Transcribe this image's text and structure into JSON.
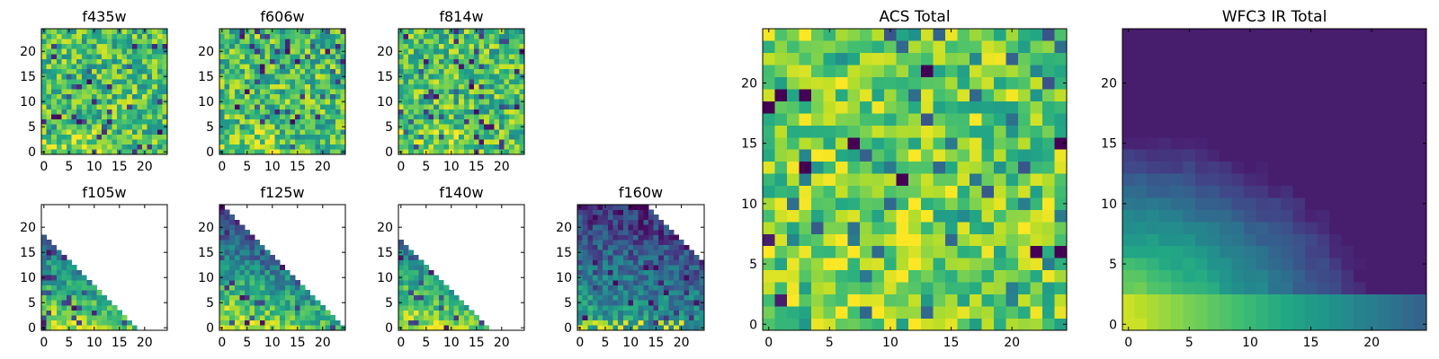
{
  "chart_data": [
    {
      "type": "heatmap",
      "title": "f435w",
      "grid_size": 25,
      "xlim": [
        -0.5,
        24.5
      ],
      "ylim": [
        -0.5,
        24.5
      ],
      "xticks": [
        0,
        5,
        10,
        15,
        20
      ],
      "yticks": [
        0,
        5,
        10,
        15,
        20
      ],
      "mask": "none",
      "pattern": "noise",
      "seed": 11,
      "colormap": "viridis"
    },
    {
      "type": "heatmap",
      "title": "f606w",
      "grid_size": 25,
      "xlim": [
        -0.5,
        24.5
      ],
      "ylim": [
        -0.5,
        24.5
      ],
      "xticks": [
        0,
        5,
        10,
        15,
        20
      ],
      "yticks": [
        0,
        5,
        10,
        15,
        20
      ],
      "mask": "none",
      "pattern": "noise",
      "seed": 23,
      "colormap": "viridis"
    },
    {
      "type": "heatmap",
      "title": "f814w",
      "grid_size": 25,
      "xlim": [
        -0.5,
        24.5
      ],
      "ylim": [
        -0.5,
        24.5
      ],
      "xticks": [
        0,
        5,
        10,
        15,
        20
      ],
      "yticks": [
        0,
        5,
        10,
        15,
        20
      ],
      "mask": "none",
      "pattern": "noise",
      "seed": 37,
      "colormap": "viridis"
    },
    {
      "type": "heatmap",
      "title": "f105w",
      "grid_size": 25,
      "xlim": [
        -0.5,
        24.5
      ],
      "ylim": [
        -0.5,
        24.5
      ],
      "xticks": [
        0,
        5,
        10,
        15,
        20
      ],
      "yticks": [
        0,
        5,
        10,
        15,
        20
      ],
      "mask": "triangle",
      "mask_threshold": 18,
      "pattern": "gradient",
      "seed": 51,
      "colormap": "viridis"
    },
    {
      "type": "heatmap",
      "title": "f125w",
      "grid_size": 25,
      "xlim": [
        -0.5,
        24.5
      ],
      "ylim": [
        -0.5,
        24.5
      ],
      "xticks": [
        0,
        5,
        10,
        15,
        20
      ],
      "yticks": [
        0,
        5,
        10,
        15,
        20
      ],
      "mask": "triangle",
      "mask_threshold": 24,
      "pattern": "gradient",
      "seed": 67,
      "colormap": "viridis"
    },
    {
      "type": "heatmap",
      "title": "f140w",
      "grid_size": 25,
      "xlim": [
        -0.5,
        24.5
      ],
      "ylim": [
        -0.5,
        24.5
      ],
      "xticks": [
        0,
        5,
        10,
        15,
        20
      ],
      "yticks": [
        0,
        5,
        10,
        15,
        20
      ],
      "mask": "triangle",
      "mask_threshold": 17,
      "pattern": "gradient",
      "seed": 79,
      "colormap": "viridis"
    },
    {
      "type": "heatmap",
      "title": "f160w",
      "grid_size": 25,
      "xlim": [
        -0.5,
        24.5
      ],
      "ylim": [
        -0.5,
        24.5
      ],
      "xticks": [
        0,
        5,
        10,
        15,
        20
      ],
      "yticks": [
        0,
        5,
        10,
        15,
        20
      ],
      "mask": "triangle",
      "mask_threshold": 37,
      "pattern": "gradient_dark",
      "seed": 97,
      "colormap": "viridis"
    },
    {
      "type": "heatmap",
      "title": "ACS Total",
      "grid_size": 25,
      "xlim": [
        -0.5,
        24.5
      ],
      "ylim": [
        -0.5,
        24.5
      ],
      "xticks": [
        0,
        5,
        10,
        15,
        20
      ],
      "yticks": [
        0,
        5,
        10,
        15,
        20
      ],
      "mask": "none",
      "pattern": "noise_bright",
      "seed": 131,
      "colormap": "viridis"
    },
    {
      "type": "heatmap",
      "title": "WFC3 IR Total",
      "grid_size": 25,
      "xlim": [
        -0.5,
        24.5
      ],
      "ylim": [
        -0.5,
        24.5
      ],
      "xticks": [
        0,
        5,
        10,
        15,
        20
      ],
      "yticks": [
        0,
        5,
        10,
        15,
        20
      ],
      "mask": "none",
      "pattern": "smooth_gradient",
      "seed": 149,
      "colormap": "viridis"
    }
  ]
}
